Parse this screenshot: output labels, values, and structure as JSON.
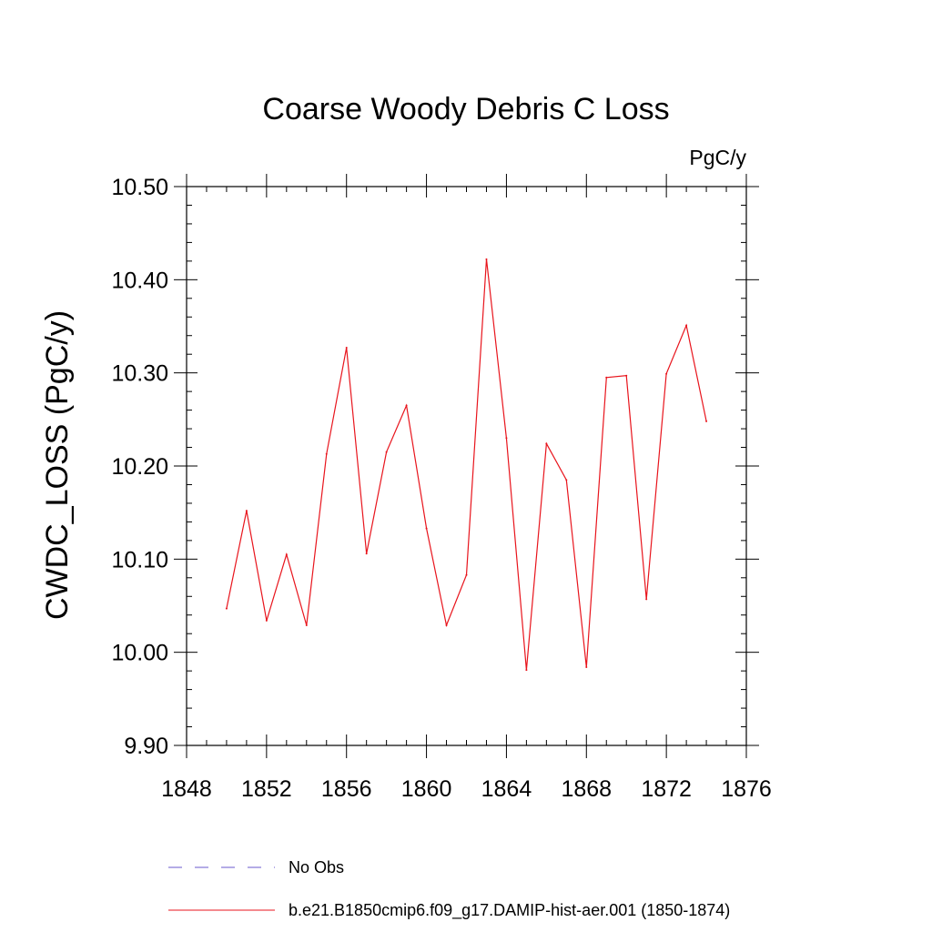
{
  "colors": {
    "series": "#e8141c",
    "obs": "#6a5acd",
    "axis": "#000000",
    "background": "#ffffff"
  },
  "chart_data": {
    "type": "line",
    "title": "Coarse Woody Debris C Loss",
    "units": "PgC/y",
    "ylabel": "CWDC_LOSS  (PgC/y)",
    "xlabel": "",
    "xlim": [
      1848,
      1876
    ],
    "ylim": [
      9.9,
      10.5
    ],
    "xticks": [
      "1848",
      "1852",
      "1856",
      "1860",
      "1864",
      "1868",
      "1872",
      "1876"
    ],
    "yticks": [
      "9.90",
      "10.00",
      "10.10",
      "10.20",
      "10.30",
      "10.40",
      "10.50"
    ],
    "grid": false,
    "legend_position": "bottom",
    "series": [
      {
        "name": "b.e21.B1850cmip6.f09_g17.DAMIP-hist-aer.001 (1850-1874)",
        "style": "solid",
        "color": "#e8141c",
        "x": [
          1850,
          1851,
          1852,
          1853,
          1854,
          1855,
          1856,
          1857,
          1858,
          1859,
          1860,
          1861,
          1862,
          1863,
          1864,
          1865,
          1866,
          1867,
          1868,
          1869,
          1870,
          1871,
          1872,
          1873,
          1874
        ],
        "values": [
          10.047,
          10.152,
          10.034,
          10.105,
          10.029,
          10.213,
          10.327,
          10.106,
          10.215,
          10.265,
          10.133,
          10.029,
          10.083,
          10.422,
          10.23,
          9.981,
          10.224,
          10.185,
          9.984,
          10.295,
          10.297,
          10.057,
          10.299,
          10.351,
          10.248
        ]
      },
      {
        "name": "No Obs",
        "style": "dashed",
        "color": "#6a5acd",
        "x": [],
        "values": []
      }
    ]
  }
}
